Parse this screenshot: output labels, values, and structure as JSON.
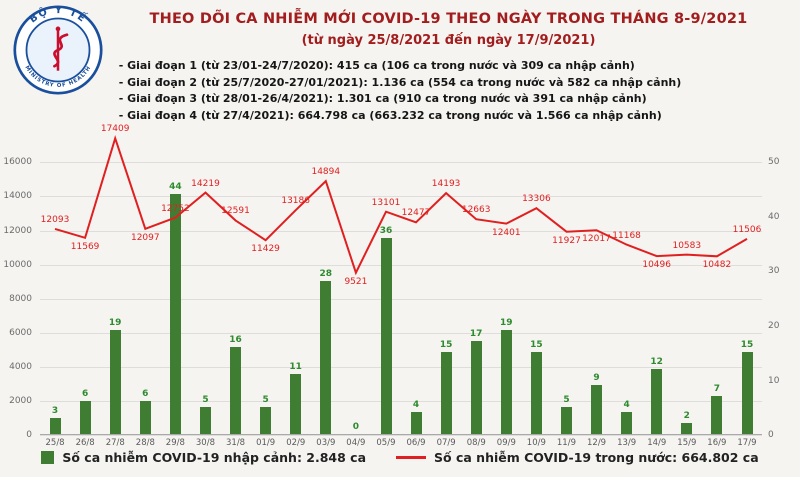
{
  "header": {
    "title": "THEO DÕI CA NHIỄM MỚI COVID-19 THEO NGÀY TRONG THÁNG 8-9/2021",
    "subtitle": "(từ ngày 25/8/2021 đến ngày 17/9/2021)",
    "notes": [
      "- Giai đoạn 1 (từ 23/01-24/7/2020): 415 ca (106 ca trong nước và 309 ca nhập cảnh)",
      "- Giai đoạn 2 (từ 25/7/2020-27/01/2021): 1.136 ca (554 ca trong nước và 582 ca nhập cảnh)",
      "- Giai đoạn 3 (từ 28/01-26/4/2021): 1.301 ca (910 ca trong nước và 391 ca nhập cảnh)",
      "- Giai đoạn 4 (từ 27/4/2021): 664.798 ca (663.232 ca trong nước và 1.566 ca nhập cảnh)"
    ],
    "logo": {
      "text_top": "BỘ Y TẾ",
      "text_bottom": "MINISTRY OF HEALTH"
    }
  },
  "colors": {
    "title": "#a21d1d",
    "bar": "#3f7d32",
    "bar_label": "#2e8b2e",
    "line": "#e02020",
    "background": "#f5f4f1"
  },
  "chart_data": {
    "type": "combo-bar-line",
    "categories": [
      "25/8",
      "26/8",
      "27/8",
      "28/8",
      "29/8",
      "30/8",
      "31/8",
      "01/9",
      "02/9",
      "03/9",
      "04/9",
      "05/9",
      "06/9",
      "07/9",
      "08/9",
      "09/9",
      "10/9",
      "11/9",
      "12/9",
      "13/9",
      "14/9",
      "15/9",
      "16/9",
      "17/9"
    ],
    "series": [
      {
        "name": "Số ca nhiễm COVID-19 nhập cảnh",
        "type": "bar",
        "axis": "right",
        "color": "#3f7d32",
        "label_color": "#2e8b2e",
        "values": [
          3,
          6,
          19,
          6,
          44,
          5,
          16,
          5,
          11,
          28,
          0,
          36,
          4,
          15,
          17,
          19,
          15,
          5,
          9,
          4,
          12,
          2,
          7,
          15
        ]
      },
      {
        "name": "Số ca nhiễm COVID-19 trong nước",
        "type": "line",
        "axis": "left",
        "color": "#e02020",
        "values": [
          12093,
          11569,
          17409,
          12097,
          12752,
          14219,
          12591,
          11429,
          13186,
          14894,
          9521,
          13101,
          12477,
          14193,
          12663,
          12401,
          13306,
          11927,
          12017,
          11168,
          10496,
          10583,
          10482,
          11506
        ],
        "label_pos": [
          "above",
          "below",
          "above",
          "below",
          "above",
          "above",
          "above",
          "below",
          "above",
          "above",
          "below",
          "above",
          "above",
          "above",
          "above",
          "below",
          "above",
          "below",
          "below",
          "above",
          "below",
          "above",
          "below",
          "above"
        ]
      }
    ],
    "left_axis": {
      "ticks": [
        0,
        2000,
        4000,
        6000,
        8000,
        10000,
        12000,
        14000,
        16000
      ],
      "max": 17600
    },
    "right_axis": {
      "ticks": [
        0,
        10,
        20,
        30,
        40,
        50
      ],
      "max": 55
    },
    "grid": true,
    "legend_position": "bottom"
  },
  "legend": [
    {
      "swatch": "bar",
      "label": "Số ca nhiễm COVID-19 nhập cảnh: 2.848 ca"
    },
    {
      "swatch": "line",
      "label": "Số ca nhiễm COVID-19 trong nước: 664.802 ca"
    }
  ]
}
